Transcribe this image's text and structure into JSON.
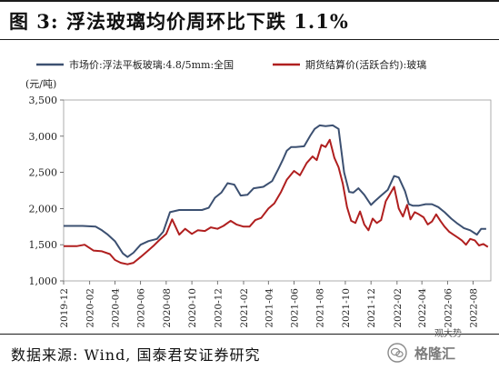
{
  "title": "图 3:  浮法玻璃均价周环比下跌 1.1%",
  "source": "数据来源:  Wind,  国泰君安证券研究",
  "watermark": {
    "text": "格隆汇",
    "sub": "观大势"
  },
  "chart_data": {
    "type": "line",
    "unit": "(元/吨)",
    "ylim": [
      1000,
      3500
    ],
    "yticks": [
      1000,
      1500,
      2000,
      2500,
      3000,
      3500
    ],
    "ytick_labels": [
      "1,000",
      "1,500",
      "2,000",
      "2,500",
      "3,000",
      "3,500"
    ],
    "xlim": [
      "2019-12",
      "2022-09"
    ],
    "xticks": [
      "2019-12",
      "2020-02",
      "2020-04",
      "2020-06",
      "2020-08",
      "2020-10",
      "2020-12",
      "2021-02",
      "2021-04",
      "2021-06",
      "2021-08",
      "2021-10",
      "2021-12",
      "2022-02",
      "2022-04",
      "2022-06",
      "2022-08"
    ],
    "grid": false,
    "legend_position": "top",
    "series": [
      {
        "name": "市场价:浮法平板玻璃:4.8/5mm:全国",
        "color": "#3c5071",
        "x": [
          "2019-12-01",
          "2020-01-01",
          "2020-01-15",
          "2020-02-15",
          "2020-03-01",
          "2020-03-15",
          "2020-04-01",
          "2020-04-20",
          "2020-05-01",
          "2020-05-15",
          "2020-06-01",
          "2020-06-20",
          "2020-07-10",
          "2020-07-25",
          "2020-08-10",
          "2020-09-01",
          "2020-10-01",
          "2020-10-25",
          "2020-11-10",
          "2020-11-25",
          "2020-12-10",
          "2020-12-25",
          "2021-01-10",
          "2021-01-25",
          "2021-02-10",
          "2021-02-25",
          "2021-03-20",
          "2021-04-10",
          "2021-04-25",
          "2021-05-05",
          "2021-05-15",
          "2021-05-25",
          "2021-06-05",
          "2021-06-25",
          "2021-07-10",
          "2021-07-20",
          "2021-08-01",
          "2021-08-15",
          "2021-09-01",
          "2021-09-15",
          "2021-09-28",
          "2021-10-10",
          "2021-10-20",
          "2021-11-01",
          "2021-11-15",
          "2021-12-01",
          "2021-12-10",
          "2021-12-25",
          "2022-01-10",
          "2022-01-25",
          "2022-02-05",
          "2022-02-20",
          "2022-03-01",
          "2022-03-10",
          "2022-03-25",
          "2022-04-10",
          "2022-04-25",
          "2022-05-10",
          "2022-05-25",
          "2022-06-10",
          "2022-06-25",
          "2022-07-10",
          "2022-07-25",
          "2022-08-10",
          "2022-08-20",
          "2022-09-01"
        ],
        "y": [
          1760,
          1760,
          1760,
          1750,
          1700,
          1640,
          1550,
          1380,
          1330,
          1390,
          1500,
          1550,
          1580,
          1680,
          1950,
          1980,
          1980,
          1980,
          2010,
          2150,
          2220,
          2350,
          2330,
          2180,
          2190,
          2280,
          2300,
          2380,
          2550,
          2670,
          2800,
          2850,
          2850,
          2860,
          3010,
          3100,
          3150,
          3140,
          3150,
          3100,
          2500,
          2230,
          2220,
          2280,
          2190,
          2050,
          2100,
          2180,
          2260,
          2450,
          2430,
          2240,
          2060,
          2040,
          2040,
          2060,
          2060,
          2020,
          1950,
          1860,
          1790,
          1730,
          1700,
          1640,
          1720,
          1720
        ]
      },
      {
        "name": "期货结算价(活跃合约):玻璃",
        "color": "#b01f1f",
        "x": [
          "2019-12-01",
          "2020-01-01",
          "2020-01-20",
          "2020-02-10",
          "2020-03-01",
          "2020-03-20",
          "2020-04-01",
          "2020-04-15",
          "2020-05-01",
          "2020-05-15",
          "2020-06-01",
          "2020-06-15",
          "2020-07-01",
          "2020-07-15",
          "2020-08-01",
          "2020-08-15",
          "2020-09-01",
          "2020-09-15",
          "2020-10-01",
          "2020-10-15",
          "2020-11-01",
          "2020-11-15",
          "2020-12-01",
          "2020-12-15",
          "2021-01-01",
          "2021-01-15",
          "2021-02-01",
          "2021-02-15",
          "2021-03-01",
          "2021-03-15",
          "2021-04-01",
          "2021-04-15",
          "2021-05-01",
          "2021-05-15",
          "2021-06-01",
          "2021-06-15",
          "2021-07-01",
          "2021-07-15",
          "2021-07-25",
          "2021-08-05",
          "2021-08-15",
          "2021-08-25",
          "2021-09-05",
          "2021-09-15",
          "2021-09-25",
          "2021-10-05",
          "2021-10-15",
          "2021-10-25",
          "2021-11-05",
          "2021-11-15",
          "2021-11-25",
          "2021-12-05",
          "2021-12-15",
          "2021-12-25",
          "2022-01-05",
          "2022-01-15",
          "2022-01-25",
          "2022-02-05",
          "2022-02-15",
          "2022-02-25",
          "2022-03-05",
          "2022-03-15",
          "2022-03-25",
          "2022-04-05",
          "2022-04-15",
          "2022-04-25",
          "2022-05-05",
          "2022-05-15",
          "2022-05-25",
          "2022-06-05",
          "2022-06-15",
          "2022-06-25",
          "2022-07-05",
          "2022-07-15",
          "2022-07-25",
          "2022-08-05",
          "2022-08-15",
          "2022-08-25",
          "2022-09-05"
        ],
        "y": [
          1480,
          1480,
          1500,
          1420,
          1410,
          1370,
          1290,
          1250,
          1230,
          1250,
          1330,
          1400,
          1480,
          1560,
          1650,
          1850,
          1640,
          1720,
          1650,
          1700,
          1690,
          1740,
          1720,
          1760,
          1830,
          1780,
          1750,
          1750,
          1840,
          1870,
          2000,
          2070,
          2230,
          2400,
          2520,
          2460,
          2630,
          2720,
          2670,
          2880,
          2850,
          2950,
          2700,
          2570,
          2340,
          2020,
          1830,
          1800,
          1960,
          1780,
          1700,
          1860,
          1800,
          1840,
          2100,
          2200,
          2300,
          2000,
          1890,
          2050,
          1850,
          1950,
          1920,
          1880,
          1780,
          1820,
          1920,
          1830,
          1750,
          1680,
          1640,
          1600,
          1560,
          1500,
          1580,
          1560,
          1490,
          1510,
          1470
        ]
      }
    ]
  }
}
